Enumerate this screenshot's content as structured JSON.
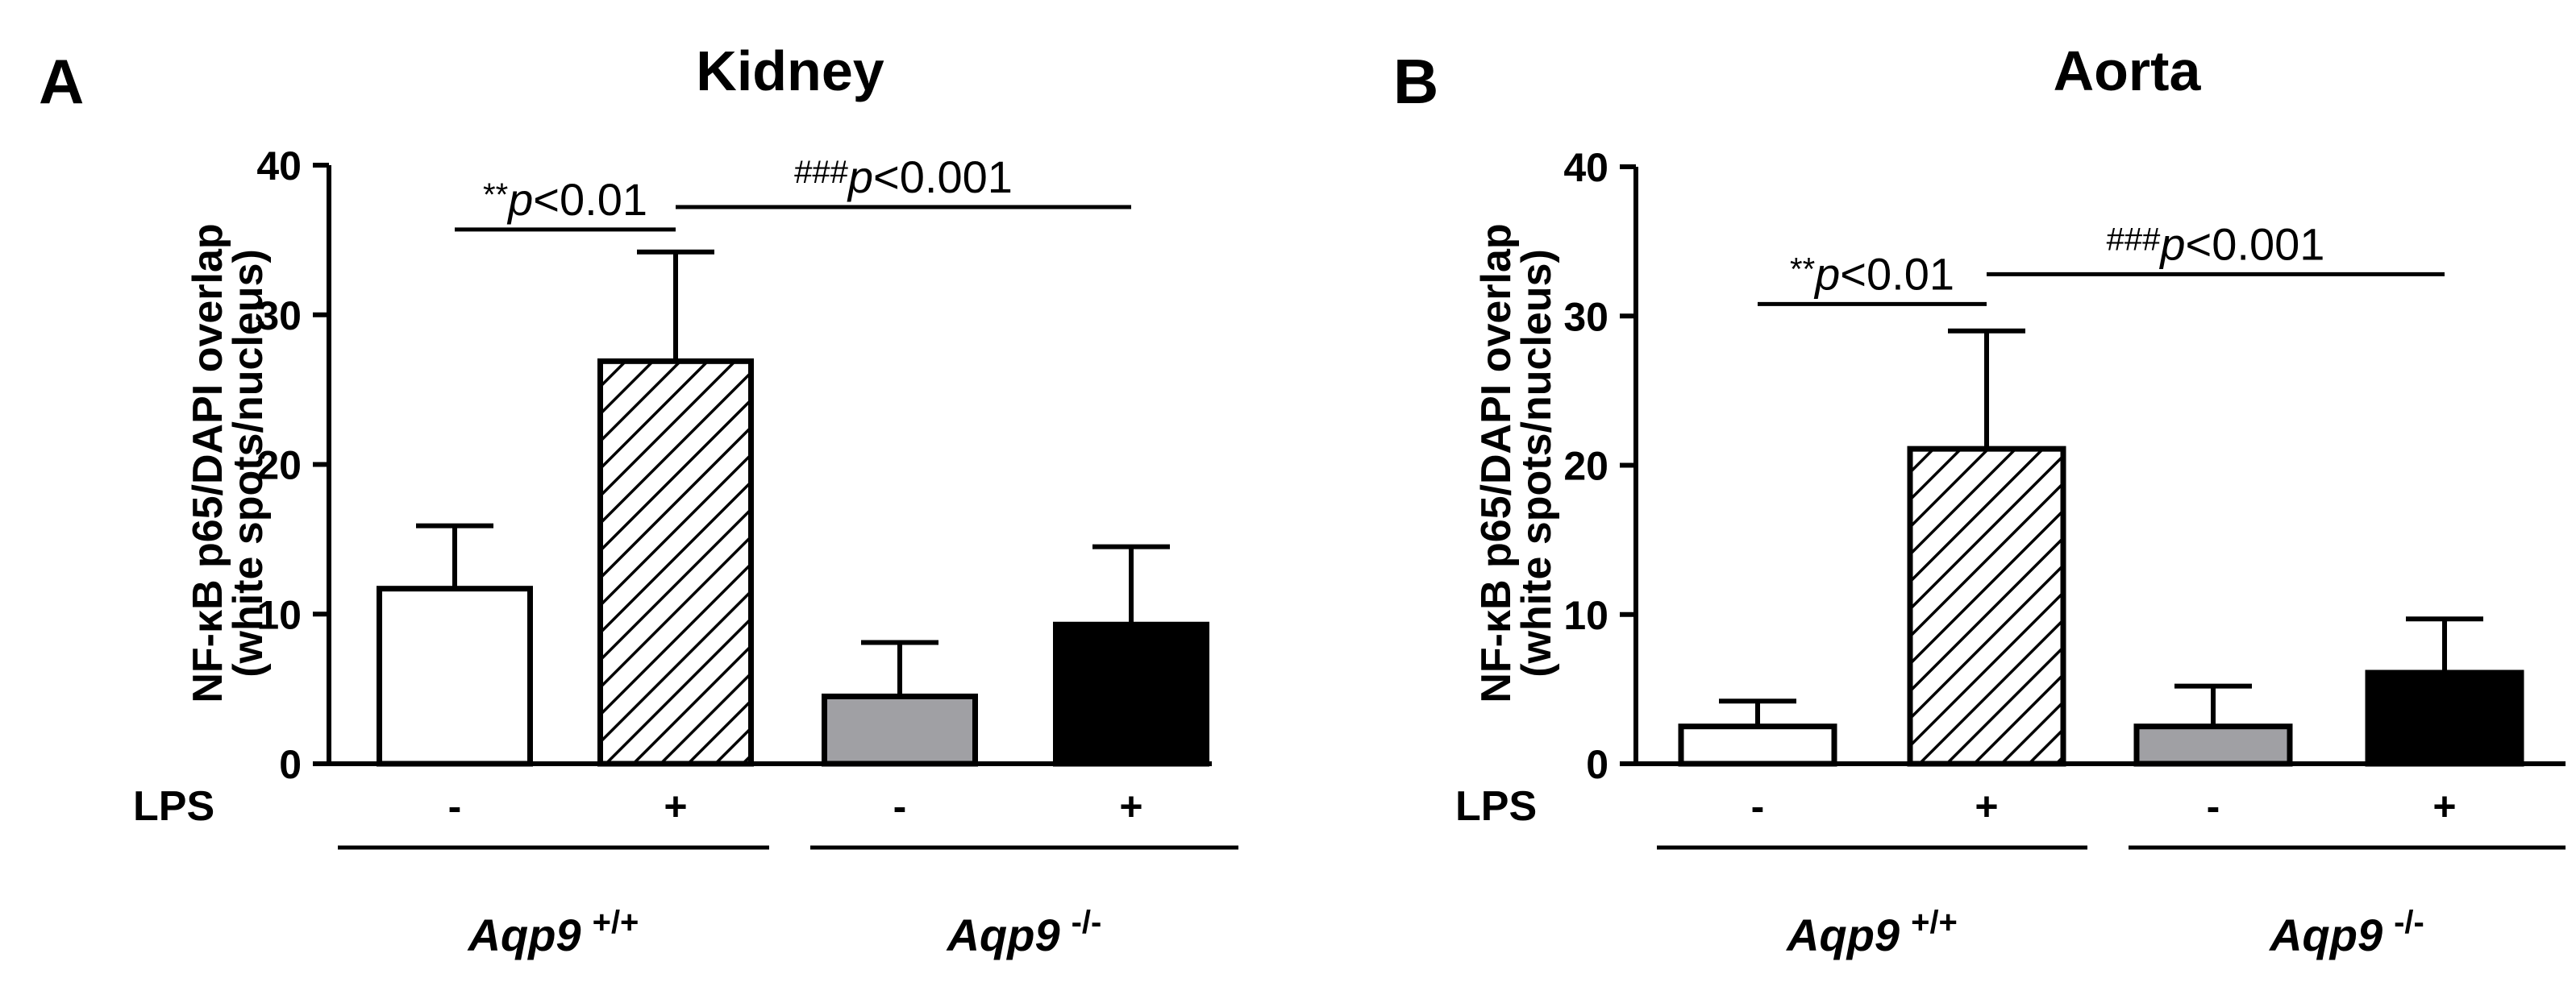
{
  "colors": {
    "axis": "#000000",
    "wt_control": "#ffffff",
    "wt_lps": "hatched",
    "ko_control": "#a0a0a4",
    "ko_lps": "#000000"
  },
  "chart_data": [
    {
      "type": "bar",
      "panel_label": "A",
      "title": "Kidney",
      "ylabel_line1": "NF-κB p65/DAPI overlap",
      "ylabel_line2": "(white spots/nucleus)",
      "ylim": [
        0,
        40
      ],
      "yticks": [
        "0",
        "10",
        "20",
        "30",
        "40"
      ],
      "lps_label": "LPS",
      "categories": [
        "-",
        "+",
        "-",
        "+"
      ],
      "values": [
        11.7,
        26.9,
        4.5,
        9.3
      ],
      "errors": [
        4.2,
        7.3,
        3.6,
        5.2
      ],
      "fills": [
        "white",
        "hatch",
        "gray",
        "black"
      ],
      "groups": [
        {
          "gene": "Aqp9",
          "genotype": "+/+"
        },
        {
          "gene": "Aqp9",
          "genotype": "-/-"
        }
      ],
      "significance": [
        {
          "stars": "**",
          "p": "p",
          "text": "<0.01",
          "from": 0,
          "to": 1,
          "y": 35.7
        },
        {
          "stars": "###",
          "p": "p",
          "text": "<0.001",
          "from": 1,
          "to": 3,
          "y": 37.2
        }
      ]
    },
    {
      "type": "bar",
      "panel_label": "B",
      "title": "Aorta",
      "ylabel_line1": "NF-κB p65/DAPI overlap",
      "ylabel_line2": "(white spots/nucleus)",
      "ylim": [
        0,
        40
      ],
      "yticks": [
        "0",
        "10",
        "20",
        "30",
        "40"
      ],
      "lps_label": "LPS",
      "categories": [
        "-",
        "+",
        "-",
        "+"
      ],
      "values": [
        2.5,
        21.1,
        2.5,
        6.1
      ],
      "errors": [
        1.7,
        7.9,
        2.7,
        3.6
      ],
      "fills": [
        "white",
        "hatch",
        "gray",
        "black"
      ],
      "groups": [
        {
          "gene": "Aqp9",
          "genotype": "+/+"
        },
        {
          "gene": "Aqp9",
          "genotype": "-/-"
        }
      ],
      "significance": [
        {
          "stars": "**",
          "p": "p",
          "text": "<0.01",
          "from": 0,
          "to": 1,
          "y": 30.8
        },
        {
          "stars": "###",
          "p": "p",
          "text": "<0.001",
          "from": 1,
          "to": 3,
          "y": 32.8
        }
      ]
    }
  ]
}
